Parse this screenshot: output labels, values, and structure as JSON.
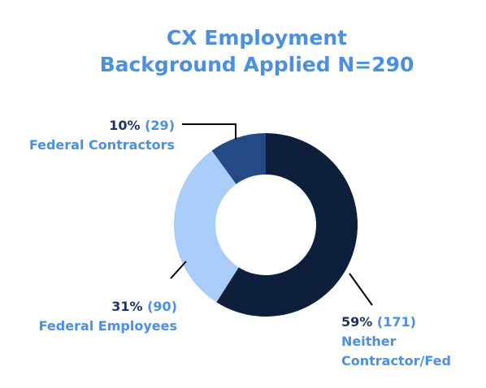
{
  "chart_data": {
    "type": "donut",
    "title": [
      "CX Employment",
      "Background Applied N=290"
    ],
    "categories": [
      "Neither Contractor/Fed",
      "Federal Employees",
      "Federal Contractors"
    ],
    "values": [
      59,
      31,
      10
    ],
    "value_labels": [
      "59%",
      "31%",
      "10%"
    ],
    "counts": [
      171,
      90,
      29
    ],
    "count_labels": [
      "(171)",
      "(90)",
      "(29)"
    ],
    "colors": [
      "#0d1f3a",
      "#a9cdf8",
      "#234a85"
    ]
  }
}
